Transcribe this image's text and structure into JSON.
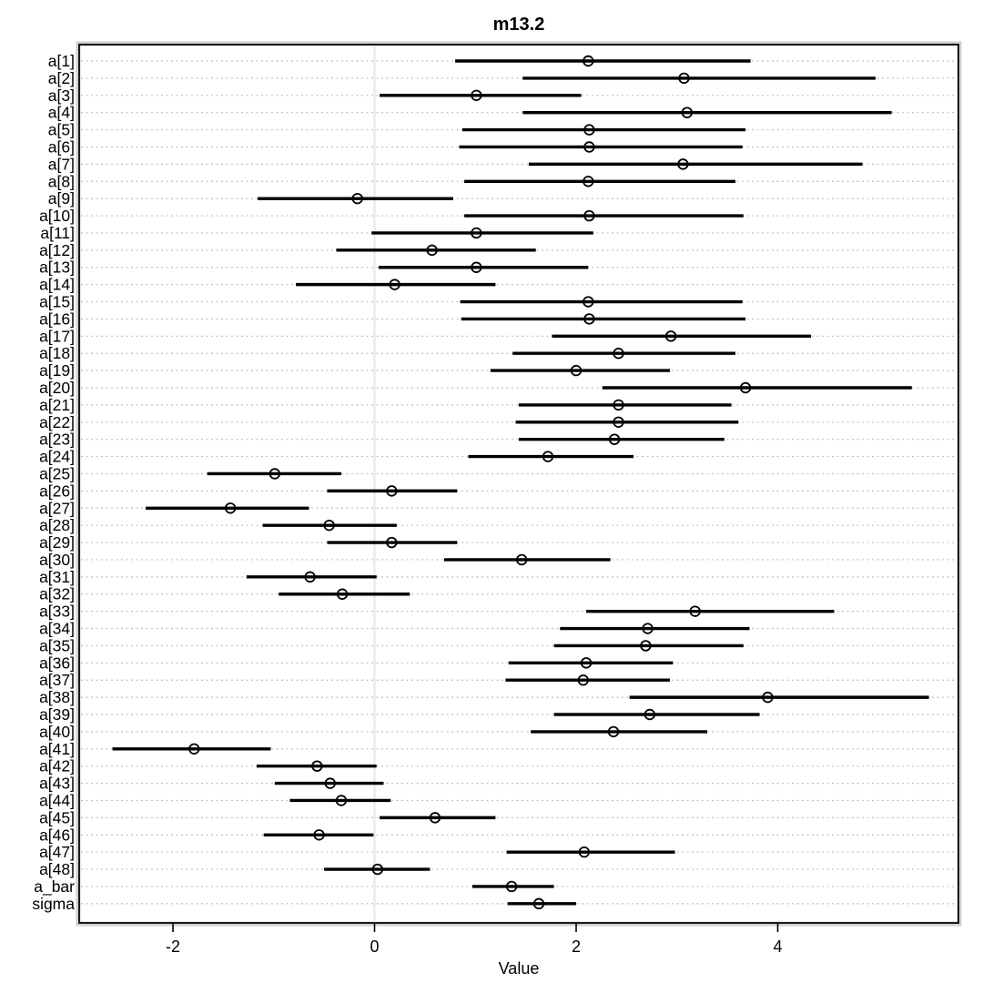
{
  "chart_data": {
    "type": "scatter",
    "subtype": "forest-interval-plot",
    "title": "m13.2",
    "xlabel": "Value",
    "ylabel": "",
    "xticks": [
      -2,
      0,
      2,
      4
    ],
    "xlim": [
      -2.93,
      5.8
    ],
    "grid": "horizontal dashed line per parameter row",
    "reference_line_x": 0,
    "legend": "none",
    "marker": "open-circle",
    "colors": {
      "interval_line": "#000000",
      "marker_stroke": "#000000",
      "grid_line": "#bfbfbf",
      "zero_line": "#e6e6e6",
      "box_border": "#1a1a1a",
      "box_halo": "#cfcfcf",
      "background": "#ffffff"
    },
    "parameters": [
      {
        "label": "a[1]",
        "mean": 2.12,
        "lo": 0.8,
        "hi": 3.73
      },
      {
        "label": "a[2]",
        "mean": 3.07,
        "lo": 1.47,
        "hi": 4.97
      },
      {
        "label": "a[3]",
        "mean": 1.01,
        "lo": 0.05,
        "hi": 2.05
      },
      {
        "label": "a[4]",
        "mean": 3.1,
        "lo": 1.47,
        "hi": 5.13
      },
      {
        "label": "a[5]",
        "mean": 2.13,
        "lo": 0.87,
        "hi": 3.68
      },
      {
        "label": "a[6]",
        "mean": 2.13,
        "lo": 0.84,
        "hi": 3.65
      },
      {
        "label": "a[7]",
        "mean": 3.06,
        "lo": 1.53,
        "hi": 4.84
      },
      {
        "label": "a[8]",
        "mean": 2.12,
        "lo": 0.89,
        "hi": 3.58
      },
      {
        "label": "a[9]",
        "mean": -0.17,
        "lo": -1.16,
        "hi": 0.78
      },
      {
        "label": "a[10]",
        "mean": 2.13,
        "lo": 0.89,
        "hi": 3.66
      },
      {
        "label": "a[11]",
        "mean": 1.01,
        "lo": -0.03,
        "hi": 2.17
      },
      {
        "label": "a[12]",
        "mean": 0.57,
        "lo": -0.38,
        "hi": 1.6
      },
      {
        "label": "a[13]",
        "mean": 1.01,
        "lo": 0.04,
        "hi": 2.12
      },
      {
        "label": "a[14]",
        "mean": 0.2,
        "lo": -0.78,
        "hi": 1.2
      },
      {
        "label": "a[15]",
        "mean": 2.12,
        "lo": 0.85,
        "hi": 3.65
      },
      {
        "label": "a[16]",
        "mean": 2.13,
        "lo": 0.86,
        "hi": 3.68
      },
      {
        "label": "a[17]",
        "mean": 2.94,
        "lo": 1.76,
        "hi": 4.33
      },
      {
        "label": "a[18]",
        "mean": 2.42,
        "lo": 1.37,
        "hi": 3.58
      },
      {
        "label": "a[19]",
        "mean": 2.0,
        "lo": 1.15,
        "hi": 2.93
      },
      {
        "label": "a[20]",
        "mean": 3.68,
        "lo": 2.26,
        "hi": 5.33
      },
      {
        "label": "a[21]",
        "mean": 2.42,
        "lo": 1.43,
        "hi": 3.54
      },
      {
        "label": "a[22]",
        "mean": 2.42,
        "lo": 1.4,
        "hi": 3.61
      },
      {
        "label": "a[23]",
        "mean": 2.38,
        "lo": 1.43,
        "hi": 3.47
      },
      {
        "label": "a[24]",
        "mean": 1.72,
        "lo": 0.93,
        "hi": 2.57
      },
      {
        "label": "a[25]",
        "mean": -0.99,
        "lo": -1.66,
        "hi": -0.33
      },
      {
        "label": "a[26]",
        "mean": 0.17,
        "lo": -0.47,
        "hi": 0.82
      },
      {
        "label": "a[27]",
        "mean": -1.43,
        "lo": -2.27,
        "hi": -0.65
      },
      {
        "label": "a[28]",
        "mean": -0.45,
        "lo": -1.11,
        "hi": 0.22
      },
      {
        "label": "a[29]",
        "mean": 0.17,
        "lo": -0.47,
        "hi": 0.82
      },
      {
        "label": "a[30]",
        "mean": 1.46,
        "lo": 0.69,
        "hi": 2.34
      },
      {
        "label": "a[31]",
        "mean": -0.64,
        "lo": -1.27,
        "hi": 0.02
      },
      {
        "label": "a[32]",
        "mean": -0.32,
        "lo": -0.95,
        "hi": 0.35
      },
      {
        "label": "a[33]",
        "mean": 3.18,
        "lo": 2.1,
        "hi": 4.56
      },
      {
        "label": "a[34]",
        "mean": 2.71,
        "lo": 1.84,
        "hi": 3.72
      },
      {
        "label": "a[35]",
        "mean": 2.69,
        "lo": 1.78,
        "hi": 3.66
      },
      {
        "label": "a[36]",
        "mean": 2.1,
        "lo": 1.33,
        "hi": 2.96
      },
      {
        "label": "a[37]",
        "mean": 2.07,
        "lo": 1.3,
        "hi": 2.93
      },
      {
        "label": "a[38]",
        "mean": 3.9,
        "lo": 2.53,
        "hi": 5.5
      },
      {
        "label": "a[39]",
        "mean": 2.73,
        "lo": 1.78,
        "hi": 3.82
      },
      {
        "label": "a[40]",
        "mean": 2.37,
        "lo": 1.55,
        "hi": 3.3
      },
      {
        "label": "a[41]",
        "mean": -1.79,
        "lo": -2.6,
        "hi": -1.03
      },
      {
        "label": "a[42]",
        "mean": -0.57,
        "lo": -1.17,
        "hi": 0.02
      },
      {
        "label": "a[43]",
        "mean": -0.44,
        "lo": -0.99,
        "hi": 0.09
      },
      {
        "label": "a[44]",
        "mean": -0.33,
        "lo": -0.84,
        "hi": 0.16
      },
      {
        "label": "a[45]",
        "mean": 0.6,
        "lo": 0.05,
        "hi": 1.2
      },
      {
        "label": "a[46]",
        "mean": -0.55,
        "lo": -1.1,
        "hi": -0.01
      },
      {
        "label": "a[47]",
        "mean": 2.08,
        "lo": 1.31,
        "hi": 2.98
      },
      {
        "label": "a[48]",
        "mean": 0.03,
        "lo": -0.5,
        "hi": 0.55
      },
      {
        "label": "a_bar",
        "mean": 1.36,
        "lo": 0.97,
        "hi": 1.78
      },
      {
        "label": "sigma",
        "mean": 1.63,
        "lo": 1.32,
        "hi": 2.0
      }
    ]
  }
}
